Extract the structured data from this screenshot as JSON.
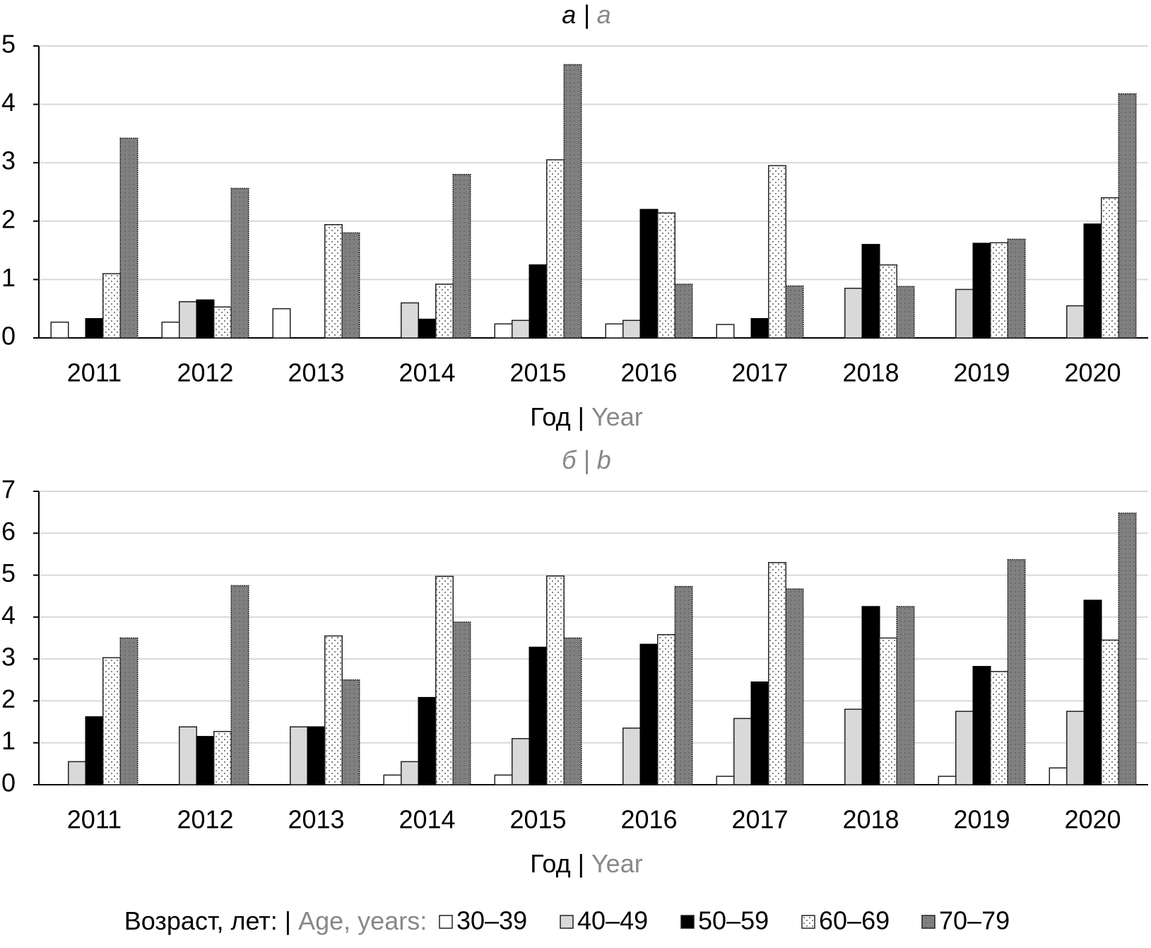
{
  "chart_data": [
    {
      "type": "bar",
      "title": [
        {
          "text": "а |",
          "color": "#000000"
        },
        {
          "text": "a",
          "color": "#888888"
        }
      ],
      "xlabel": [
        {
          "text": "Год |",
          "color": "#000000"
        },
        {
          "text": "Year",
          "color": "#888888"
        }
      ],
      "categories": [
        "2011",
        "2012",
        "2013",
        "2014",
        "2015",
        "2016",
        "2017",
        "2018",
        "2019",
        "2020"
      ],
      "ylim": [
        0,
        5
      ],
      "yticks": [
        0,
        1,
        2,
        3,
        4,
        5
      ],
      "grid": true,
      "series": [
        {
          "name": "30–39",
          "color": "#ffffff",
          "values": [
            0.27,
            0.27,
            0.5,
            null,
            0.24,
            0.24,
            0.23,
            null,
            null,
            null
          ]
        },
        {
          "name": "40–49",
          "color": "#d9d9d9",
          "values": [
            null,
            0.62,
            null,
            0.6,
            0.3,
            0.3,
            null,
            0.85,
            0.83,
            0.55
          ]
        },
        {
          "name": "50–59",
          "color": "#000000",
          "values": [
            0.33,
            0.65,
            null,
            0.32,
            1.25,
            2.2,
            0.33,
            1.6,
            1.62,
            1.95
          ]
        },
        {
          "name": "60–69",
          "color": "#ffffff",
          "pattern": "dots",
          "values": [
            1.1,
            0.53,
            1.94,
            0.92,
            3.05,
            2.14,
            2.95,
            1.25,
            1.63,
            2.4
          ]
        },
        {
          "name": "70–79",
          "color": "#808080",
          "pattern": "dots",
          "values": [
            3.42,
            2.56,
            1.8,
            2.8,
            4.68,
            0.92,
            0.89,
            0.88,
            1.69,
            4.18
          ]
        }
      ]
    },
    {
      "type": "bar",
      "title": [
        {
          "text": "б | b",
          "color": "#888888"
        }
      ],
      "xlabel": [
        {
          "text": "Год |",
          "color": "#000000"
        },
        {
          "text": "Year",
          "color": "#888888"
        }
      ],
      "categories": [
        "2011",
        "2012",
        "2013",
        "2014",
        "2015",
        "2016",
        "2017",
        "2018",
        "2019",
        "2020"
      ],
      "ylim": [
        0,
        7
      ],
      "yticks": [
        0,
        1,
        2,
        3,
        4,
        5,
        6,
        7
      ],
      "grid": true,
      "series": [
        {
          "name": "30–39",
          "color": "#ffffff",
          "values": [
            null,
            null,
            null,
            0.23,
            0.23,
            null,
            0.2,
            null,
            0.2,
            0.4
          ]
        },
        {
          "name": "40–49",
          "color": "#d9d9d9",
          "values": [
            0.55,
            1.38,
            1.38,
            0.55,
            1.1,
            1.35,
            1.58,
            1.8,
            1.75,
            1.75
          ]
        },
        {
          "name": "50–59",
          "color": "#000000",
          "values": [
            1.62,
            1.15,
            1.38,
            2.08,
            3.28,
            3.35,
            2.45,
            4.25,
            2.82,
            4.4
          ]
        },
        {
          "name": "60–69",
          "color": "#ffffff",
          "pattern": "dots",
          "values": [
            3.03,
            1.27,
            3.55,
            4.97,
            4.98,
            3.58,
            5.3,
            3.5,
            2.7,
            3.45
          ]
        },
        {
          "name": "70–79",
          "color": "#808080",
          "pattern": "dots",
          "values": [
            3.5,
            4.75,
            2.5,
            3.88,
            3.5,
            4.73,
            4.67,
            4.25,
            5.37,
            6.48
          ]
        }
      ]
    }
  ],
  "legend_title": [
    {
      "text": "Возраст, лет: |",
      "color": "#000000"
    },
    {
      "text": "Age, years:",
      "color": "#888888"
    }
  ]
}
